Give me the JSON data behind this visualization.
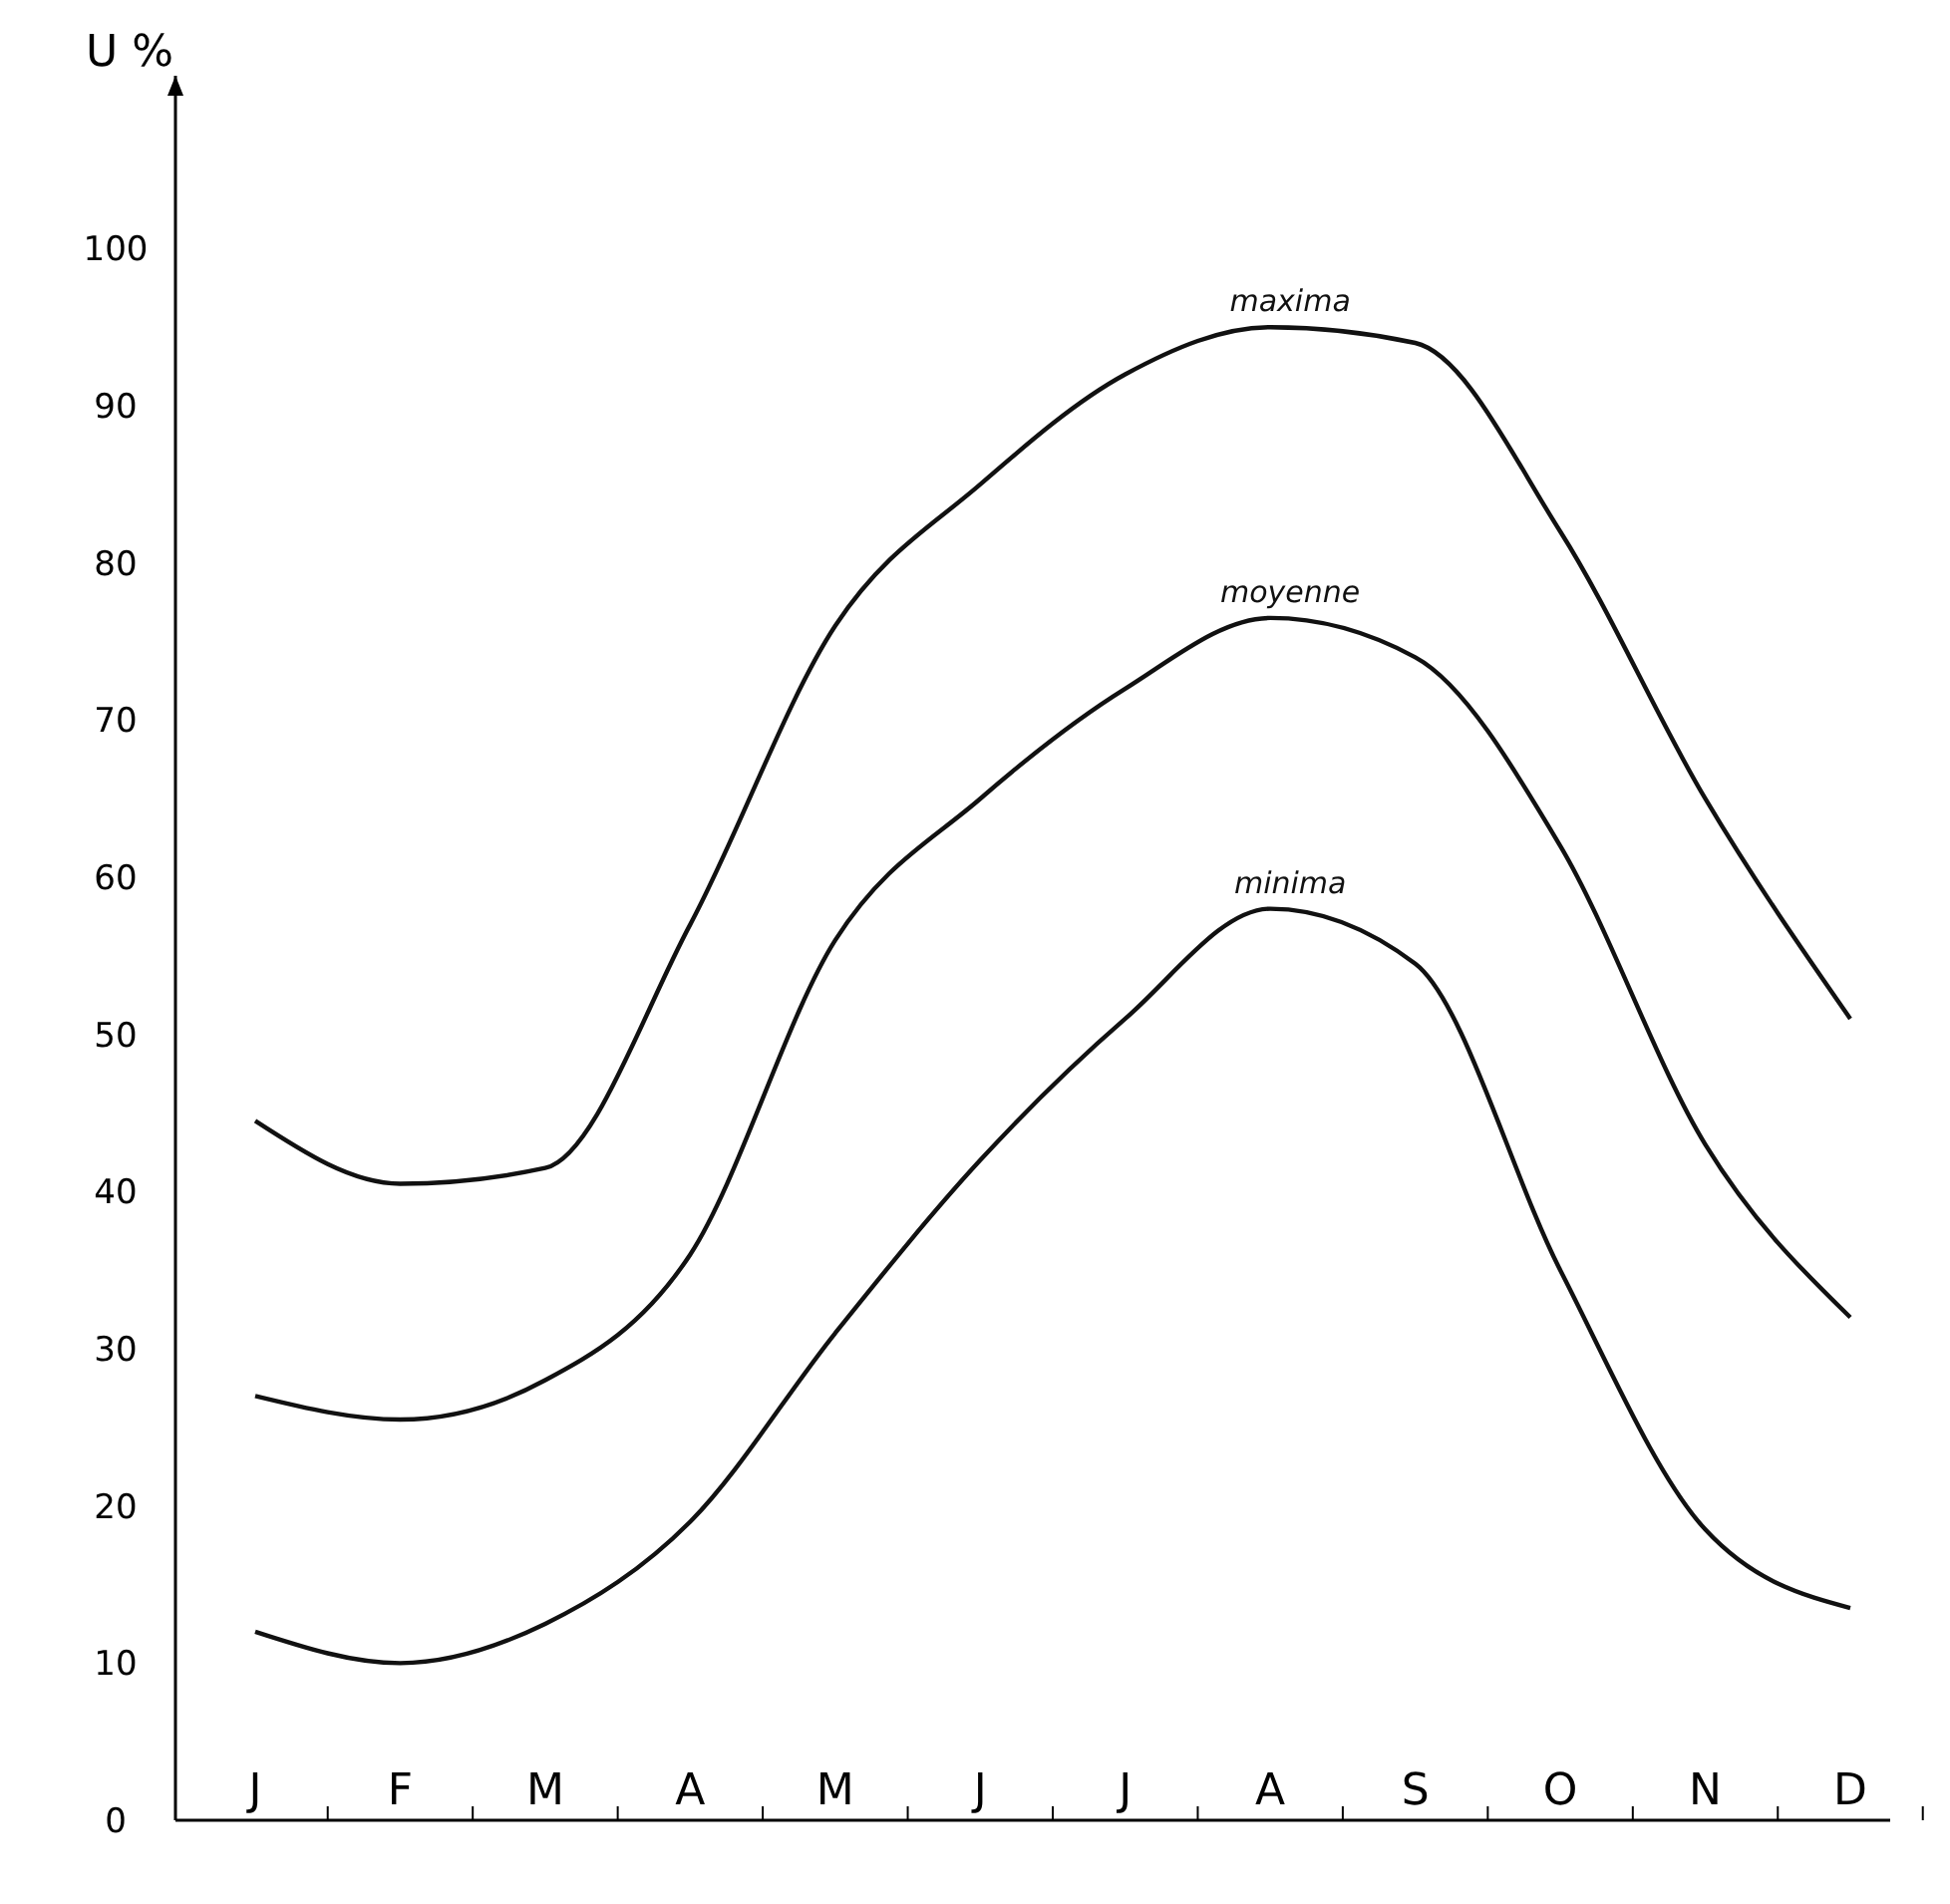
{
  "chart_data": {
    "type": "line",
    "ylabel": "U %",
    "categories": [
      "J",
      "F",
      "M",
      "A",
      "M",
      "J",
      "J",
      "A",
      "S",
      "O",
      "N",
      "D"
    ],
    "series": [
      {
        "name": "maxima",
        "color": "#111111",
        "values": [
          44.5,
          40.5,
          41.5,
          57,
          76,
          85,
          92,
          95,
          94,
          82,
          65,
          51
        ]
      },
      {
        "name": "moyenne",
        "color": "#111111",
        "values": [
          27,
          25.5,
          28,
          36,
          56,
          65,
          72,
          76.5,
          74,
          62,
          43,
          32
        ]
      },
      {
        "name": "minima",
        "color": "#111111",
        "values": [
          12,
          10,
          12.5,
          19,
          31,
          42,
          51,
          58,
          54.5,
          35,
          18.5,
          13.5
        ]
      }
    ],
    "ylim": [
      0,
      111
    ],
    "yticks": [
      0,
      10,
      20,
      30,
      40,
      50,
      60,
      70,
      80,
      90,
      100
    ],
    "grid": false,
    "marker": "none",
    "line_style": "solid"
  }
}
